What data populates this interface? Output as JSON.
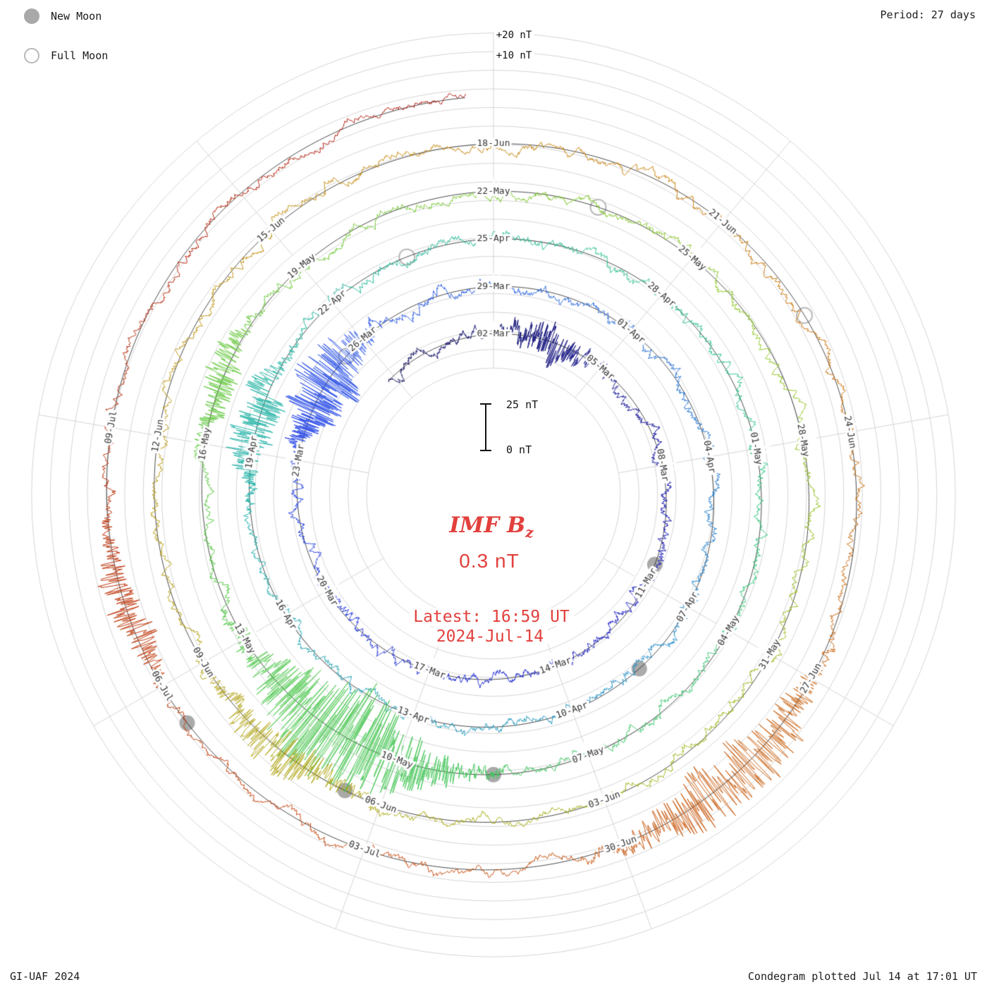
{
  "legend": {
    "new_moon": "New Moon",
    "full_moon": "Full Moon"
  },
  "header": {
    "period": "Period: 27 days"
  },
  "footer": {
    "left": "GI-UAF 2024",
    "right": "Condegram plotted Jul 14 at 17:01 UT"
  },
  "center": {
    "title": "IMF B",
    "title_sub": "z",
    "value": "0.3 nT",
    "latest_line1": "Latest: 16:59 UT",
    "latest_line2": "2024-Jul-14"
  },
  "scale_bar": {
    "top": "25 nT",
    "bottom": "0 nT"
  },
  "ring_scale_labels": [
    "+20 nT",
    "+10 nT"
  ],
  "chart_data": {
    "type": "line",
    "kind": "condegram-polar-spiral",
    "quantity": "IMF Bz",
    "units": "nT",
    "period_days": 27,
    "label_step_days": 3,
    "first_label_date": "2024-03-02",
    "data_start": "2024-02-27T19:00",
    "data_end": "2024-07-14T16:59",
    "latest_value_nT": 0.3,
    "radial_ticks_nT": [
      10,
      20
    ],
    "inner_scale_bar_nT": [
      0,
      25
    ],
    "date_labels": [
      "02-Mar",
      "05-Mar",
      "08-Mar",
      "11-Mar",
      "14-Mar",
      "17-Mar",
      "20-Mar",
      "23-Mar",
      "26-Mar",
      "29-Mar",
      "01-Apr",
      "04-Apr",
      "07-Apr",
      "10-Apr",
      "13-Apr",
      "16-Apr",
      "19-Apr",
      "22-Apr",
      "25-Apr",
      "28-Apr",
      "01-May",
      "04-May",
      "07-May",
      "10-May",
      "13-May",
      "16-May",
      "19-May",
      "22-May",
      "25-May",
      "28-May",
      "31-May",
      "03-Jun",
      "06-Jun",
      "09-Jun",
      "12-Jun",
      "15-Jun",
      "18-Jun",
      "21-Jun",
      "24-Jun",
      "27-Jun",
      "30-Jun",
      "03-Jul",
      "06-Jul",
      "09-Jul"
    ],
    "new_moons": [
      "2024-03-10",
      "2024-04-08",
      "2024-05-08",
      "2024-06-06",
      "2024-07-05"
    ],
    "full_moons": [
      "2024-03-25",
      "2024-04-23",
      "2024-05-23",
      "2024-06-22"
    ],
    "quiet_noise_sd_nT": 3,
    "events": [
      {
        "date": "2024-03-03T12:00",
        "amplitude_nT": 9,
        "duration_days": 1.0
      },
      {
        "date": "2024-03-24T18:00",
        "amplitude_nT": 20,
        "duration_days": 1.1
      },
      {
        "date": "2024-04-19T12:00",
        "amplitude_nT": 13,
        "duration_days": 0.9
      },
      {
        "date": "2024-05-10T22:00",
        "amplitude_nT": 30,
        "duration_days": 1.5
      },
      {
        "date": "2024-05-17T00:00",
        "amplitude_nT": 10,
        "duration_days": 0.7
      },
      {
        "date": "2024-06-07T12:00",
        "amplitude_nT": 12,
        "duration_days": 0.9
      },
      {
        "date": "2024-06-28T12:00",
        "amplitude_nT": 18,
        "duration_days": 1.2
      },
      {
        "date": "2024-07-07T00:00",
        "amplitude_nT": 10,
        "duration_days": 0.8
      }
    ],
    "palette": [
      "#14145c",
      "#2020c0",
      "#3050e8",
      "#2e86d0",
      "#2ab4ae",
      "#30c488",
      "#52c84a",
      "#8cc825",
      "#b0a616",
      "#c8820e",
      "#c84e12",
      "#b01c10"
    ],
    "grid_color": "#d4d4d4",
    "baseline_color": "#1a1a1a",
    "moon_marker_color": "#aaaaaa",
    "seed": 1337
  }
}
